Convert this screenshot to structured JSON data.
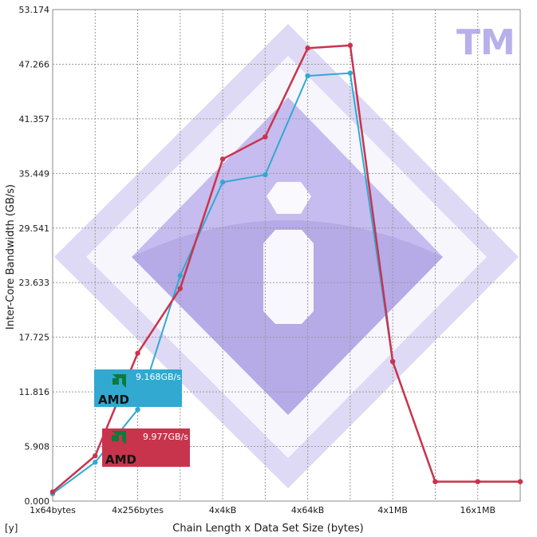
{
  "chart_data": {
    "type": "line",
    "title": "",
    "xlabel": "Chain Length x Data Set Size (bytes)",
    "ylabel": "Inter-Core Bandwidth (GB/s)",
    "ylim": [
      0,
      53.174
    ],
    "y_ticks": [
      "0.000",
      "5.908",
      "11.816",
      "17.725",
      "23.633",
      "29.541",
      "35.449",
      "41.357",
      "47.266",
      "53.174"
    ],
    "x_tick_labels": [
      "1x64bytes",
      "4x256bytes",
      "4x4kB",
      "4x64kB",
      "4x1MB",
      "16x1MB"
    ],
    "grid": true,
    "series": [
      {
        "name": "",
        "legend_value": "9.168GB/s",
        "color": "#31a9d1",
        "values": [
          0.8,
          4.2,
          9.9,
          24.4,
          34.5,
          35.3,
          46.0,
          46.3,
          15.1,
          2.1,
          2.1,
          2.1
        ]
      },
      {
        "name": "",
        "legend_value": "9.977GB/s",
        "color": "#c9344d",
        "values": [
          1.0,
          4.9,
          16.0,
          23.0,
          37.0,
          39.4,
          49.0,
          49.3,
          15.1,
          2.1,
          2.1,
          2.1
        ]
      }
    ],
    "legend_placement": "bottom-left"
  },
  "legend": {
    "brand_label": "AMD"
  },
  "watermark": {
    "tm_label": "TM"
  },
  "corner_label": "[y]",
  "colors": {
    "grid": "#9a9a9a",
    "watermark_light": "#e4e0f8",
    "watermark_mid": "#c9c0ef",
    "watermark_dark": "#a99be0"
  }
}
